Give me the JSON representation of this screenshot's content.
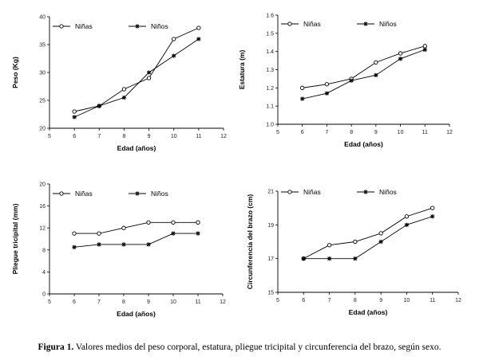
{
  "caption": {
    "label": "Figura 1.",
    "text": " Valores medios del peso corporal, estatura, pliegue tricipital y circunferencia del brazo, según sexo."
  },
  "colors": {
    "line": "#000000",
    "background": "#ffffff"
  },
  "chart_data": [
    {
      "type": "line",
      "title": "",
      "xlabel": "Edad (años)",
      "ylabel": "Peso (Kg)",
      "xlim": [
        5,
        12
      ],
      "ylim": [
        20,
        40
      ],
      "xticks": [
        "5",
        "6",
        "7",
        "8",
        "9",
        "10",
        "11",
        "12"
      ],
      "yticks": [
        "20",
        "25",
        "30",
        "35",
        "40"
      ],
      "x": [
        6,
        7,
        8,
        9,
        10,
        11
      ],
      "series": [
        {
          "name": "Niñas",
          "marker": "circle",
          "values": [
            23,
            24,
            27,
            29,
            36,
            38
          ]
        },
        {
          "name": "Niños",
          "marker": "star",
          "values": [
            22,
            24,
            25.5,
            30,
            33,
            36
          ]
        }
      ],
      "legend": "top-left",
      "grid": false
    },
    {
      "type": "line",
      "title": "",
      "xlabel": "Edad (años)",
      "ylabel": "Estatura (m)",
      "xlim": [
        5,
        12
      ],
      "ylim": [
        1.0,
        1.6
      ],
      "xticks": [
        "5",
        "6",
        "7",
        "8",
        "9",
        "10",
        "11",
        "12"
      ],
      "yticks": [
        "1.0",
        "1.1",
        "1.2",
        "1.3",
        "1.4",
        "1.5",
        "1.6"
      ],
      "x": [
        6,
        7,
        8,
        9,
        10,
        11
      ],
      "series": [
        {
          "name": "Niñas",
          "marker": "circle",
          "values": [
            1.2,
            1.22,
            1.25,
            1.34,
            1.39,
            1.43
          ]
        },
        {
          "name": "Niños",
          "marker": "star",
          "values": [
            1.14,
            1.17,
            1.24,
            1.27,
            1.36,
            1.41
          ]
        }
      ],
      "legend": "top-left",
      "grid": false
    },
    {
      "type": "line",
      "title": "",
      "xlabel": "Edad (años)",
      "ylabel": "Pliegue tricipital (mm)",
      "xlim": [
        5,
        12
      ],
      "ylim": [
        0,
        20
      ],
      "xticks": [
        "5",
        "6",
        "7",
        "8",
        "9",
        "10",
        "11",
        "12"
      ],
      "yticks": [
        "0",
        "4",
        "8",
        "12",
        "16",
        "20"
      ],
      "x": [
        6,
        7,
        8,
        9,
        10,
        11
      ],
      "series": [
        {
          "name": "Niñas",
          "marker": "circle",
          "values": [
            11,
            11,
            12,
            13,
            13,
            13
          ]
        },
        {
          "name": "Niños",
          "marker": "star",
          "values": [
            8.5,
            9,
            9,
            9,
            11,
            11
          ]
        }
      ],
      "legend": "top-left",
      "grid": false
    },
    {
      "type": "line",
      "title": "",
      "xlabel": "Edad (años)",
      "ylabel": "Circunferencia del brazo (cm)",
      "xlim": [
        5,
        12
      ],
      "ylim": [
        15,
        21
      ],
      "xticks": [
        "5",
        "6",
        "7",
        "8",
        "9",
        "10",
        "11",
        "12"
      ],
      "yticks": [
        "15",
        "17",
        "19",
        "21"
      ],
      "x": [
        6,
        7,
        8,
        9,
        10,
        11
      ],
      "series": [
        {
          "name": "Niñas",
          "marker": "circle",
          "values": [
            17,
            17.8,
            18,
            18.5,
            19.5,
            20
          ]
        },
        {
          "name": "Niños",
          "marker": "star",
          "values": [
            17,
            17,
            17,
            18,
            19,
            19.5
          ]
        }
      ],
      "legend": "top-left",
      "grid": false
    }
  ]
}
